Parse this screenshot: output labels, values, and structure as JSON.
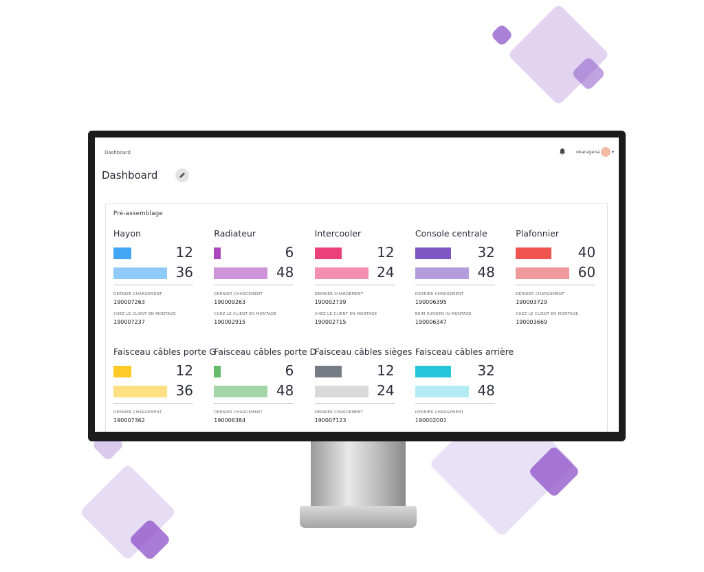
{
  "breadcrumb": "Dashboard",
  "page_title": "Dashboard",
  "user": "okaragena",
  "section": {
    "title": "Pré-assemblage",
    "cards": [
      {
        "name": "Hayon",
        "values": [
          12,
          36
        ],
        "colors": [
          "#42a5f5",
          "#90caf9"
        ],
        "fields": [
          {
            "label": "DERNIER CHARGEMENT",
            "value": "190007263"
          },
          {
            "label": "CHEZ LE CLIENT EN MONTAGE",
            "value": "190007237"
          }
        ]
      },
      {
        "name": "Radiateur",
        "values": [
          6,
          48
        ],
        "colors": [
          "#ab47bc",
          "#ce93d8"
        ],
        "fields": [
          {
            "label": "DERNIER CHARGEMENT",
            "value": "190009263"
          },
          {
            "label": "CHEZ LE CLIENT EN MONTAGE",
            "value": "190002915"
          }
        ]
      },
      {
        "name": "Intercooler",
        "values": [
          12,
          24
        ],
        "colors": [
          "#ec407a",
          "#f48fb1"
        ],
        "fields": [
          {
            "label": "DERNIER CHARGEMENT",
            "value": "190002739"
          },
          {
            "label": "CHEZ LE CLIENT EN MONTAGE",
            "value": "190002715"
          }
        ]
      },
      {
        "name": "Console centrale",
        "values": [
          32,
          48
        ],
        "colors": [
          "#7e57c2",
          "#b39ddb"
        ],
        "fields": [
          {
            "label": "DERNIER CHARGEMENT",
            "value": "190006395"
          },
          {
            "label": "BEIM KUNDEN IN MONTAGE",
            "value": "190006347"
          }
        ]
      },
      {
        "name": "Plafonnier",
        "values": [
          40,
          60
        ],
        "colors": [
          "#ef5350",
          "#ef9a9a"
        ],
        "fields": [
          {
            "label": "DERNIER CHARGEMENT",
            "value": "190003729"
          },
          {
            "label": "CHEZ LE CLIENT EN MONTAGE",
            "value": "190003669"
          }
        ]
      },
      {
        "name": "Faisceau câbles porte G",
        "values": [
          12,
          36
        ],
        "colors": [
          "#ffca28",
          "#ffe082"
        ],
        "fields": [
          {
            "label": "DERNIER CHARGEMENT",
            "value": "190007362"
          }
        ]
      },
      {
        "name": "Faisceau câbles porte D",
        "values": [
          6,
          48
        ],
        "colors": [
          "#66bb6a",
          "#a5d6a7"
        ],
        "fields": [
          {
            "label": "DERNIER CHARGEMENT",
            "value": "190006384"
          }
        ]
      },
      {
        "name": "Faisceau câbles sièges",
        "values": [
          12,
          24
        ],
        "colors": [
          "#757c85",
          "#d9d9d9"
        ],
        "fields": [
          {
            "label": "DERNIER CHARGEMENT",
            "value": "190007123"
          }
        ]
      },
      {
        "name": "Faisceau câbles arrière",
        "values": [
          32,
          48
        ],
        "colors": [
          "#26c6da",
          "#b2ebf2"
        ],
        "fields": [
          {
            "label": "DERNIER CHARGEMENT",
            "value": "190002001"
          }
        ]
      }
    ]
  }
}
